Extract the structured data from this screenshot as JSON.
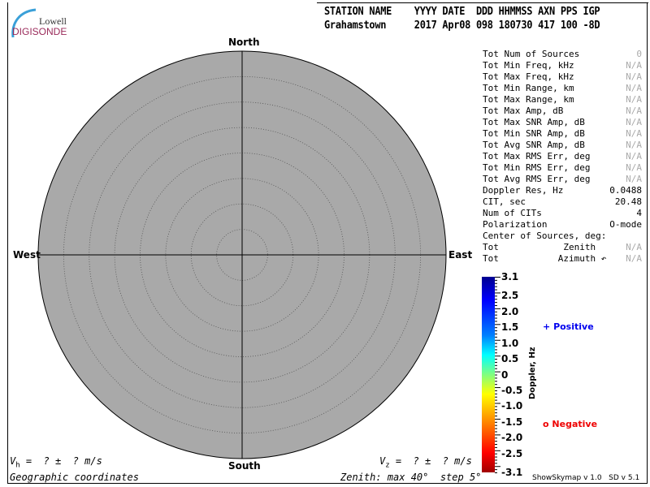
{
  "logo": {
    "line1": "Lowell",
    "line2": "DIGISONDE"
  },
  "header": {
    "row1": "STATION NAME    YYYY DATE  DDD HHMMSS AXN PPS IGP",
    "row2": "Grahamstown     2017 Apr08 098 180730 417 100 -8D"
  },
  "directions": {
    "north": "North",
    "south": "South",
    "east": "East",
    "west": "West"
  },
  "skymap": {
    "zenith_max_deg": 40,
    "zenith_step_deg": 5,
    "background": "#a9a9a9"
  },
  "stats": [
    {
      "label": "Tot Num of Sources",
      "value": "0",
      "na": true
    },
    {
      "label": "Tot Min Freq, kHz",
      "value": "N/A",
      "na": true
    },
    {
      "label": "Tot Max Freq, kHz",
      "value": "N/A",
      "na": true
    },
    {
      "label": "Tot Min Range, km",
      "value": "N/A",
      "na": true
    },
    {
      "label": "Tot Max Range, km",
      "value": "N/A",
      "na": true
    },
    {
      "label": "Tot Max Amp, dB",
      "value": "N/A",
      "na": true
    },
    {
      "label": "Tot Max SNR Amp, dB",
      "value": "N/A",
      "na": true
    },
    {
      "label": "Tot Min SNR Amp, dB",
      "value": "N/A",
      "na": true
    },
    {
      "label": "Tot Avg SNR Amp, dB",
      "value": "N/A",
      "na": true
    },
    {
      "label": "Tot Max RMS Err, deg",
      "value": "N/A",
      "na": true
    },
    {
      "label": "Tot Min RMS Err, deg",
      "value": "N/A",
      "na": true
    },
    {
      "label": "Tot Avg RMS Err, deg",
      "value": "N/A",
      "na": true
    },
    {
      "label": "Doppler Res, Hz",
      "value": "0.0488",
      "na": false
    },
    {
      "label": "CIT, sec",
      "value": "20.48",
      "na": false
    },
    {
      "label": "Num of CITs",
      "value": "4",
      "na": false
    },
    {
      "label": "Polarization",
      "value": "O-mode",
      "na": false
    },
    {
      "label": "Center of Sources, deg:",
      "value": "",
      "na": false
    },
    {
      "label": "Tot            Zenith",
      "value": "N/A",
      "na": true
    },
    {
      "label": "Tot           Azimuth ↶",
      "value": "N/A",
      "na": true
    }
  ],
  "colorbar": {
    "title": "Doppler, Hz",
    "ticks": [
      "3.1",
      "2.5",
      "2.0",
      "1.5",
      "1.0",
      "0.5",
      "0",
      "-0.5",
      "-1.0",
      "-1.5",
      "-2.0",
      "-2.5",
      "-3.1"
    ],
    "min": -3.1,
    "max": 3.1
  },
  "legend": {
    "positive": "Positive",
    "negative": "Negative",
    "positive_symbol": "+",
    "negative_symbol": "o",
    "positive_color": "#0000ee",
    "negative_color": "#ee0000"
  },
  "footer": {
    "vh": "V",
    "vh_sub": "h",
    "vh_rest": " =  ? ±  ? m/s",
    "vz": "V",
    "vz_sub": "z",
    "vz_rest": " =  ? ±  ? m/s",
    "coords": "Geographic coordinates",
    "zenith": "Zenith: max 40°  step 5°",
    "version1": "ShowSkymap v 1.0",
    "version2": "SD v 5.1"
  }
}
